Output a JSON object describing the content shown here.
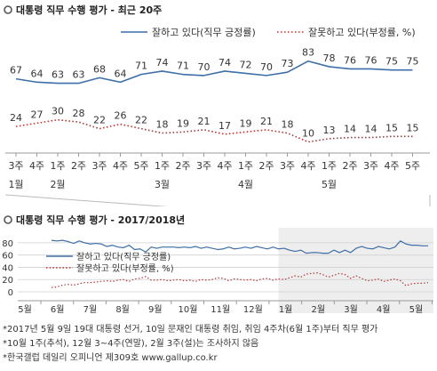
{
  "colors": {
    "approve": "#3f6fa8",
    "disapprove": "#b03a3a",
    "grid": "#d0d0d0",
    "axis": "#999999",
    "shade": "#eeeeee",
    "title_bullet": "#555555"
  },
  "icons": {
    "title_bullet": "circle-bullet-icon"
  },
  "chart_data": [
    {
      "type": "line",
      "title": "대통령 직무 수행 평가 - 최근 20주",
      "categories": [
        "3주",
        "4주",
        "1주",
        "2주",
        "3주",
        "4주",
        "5주",
        "1주",
        "2주",
        "3주",
        "4주",
        "1주",
        "2주",
        "3주",
        "4주",
        "1주",
        "2주",
        "3주",
        "4주",
        "5주"
      ],
      "month_labels": [
        {
          "index": 0,
          "label": "1월"
        },
        {
          "index": 2,
          "label": "2월"
        },
        {
          "index": 7,
          "label": "3월"
        },
        {
          "index": 11,
          "label": "4월"
        },
        {
          "index": 15,
          "label": "5월"
        }
      ],
      "series": [
        {
          "name": "잘하고 있다(직무 긍정률)",
          "style": "solid",
          "values": [
            67,
            64,
            63,
            63,
            68,
            64,
            71,
            74,
            71,
            70,
            74,
            72,
            70,
            73,
            83,
            78,
            76,
            76,
            75,
            75
          ]
        },
        {
          "name": "잘못하고 있다(부정률, %)",
          "style": "dotted",
          "values": [
            24,
            27,
            30,
            28,
            22,
            26,
            22,
            18,
            19,
            21,
            17,
            19,
            21,
            18,
            10,
            13,
            14,
            14,
            15,
            15
          ]
        }
      ],
      "ylim": [
        0,
        100
      ],
      "legend": "top"
    },
    {
      "type": "line",
      "title": "대통령 직무 수행 평가 - 2017/2018년",
      "yticks": [
        0,
        20,
        40,
        60,
        80
      ],
      "ylim": [
        0,
        90
      ],
      "month_labels": [
        "5월",
        "6월",
        "7월",
        "8월",
        "9월",
        "10월",
        "11월",
        "12월",
        "1월",
        "2월",
        "3월",
        "4월",
        "5월"
      ],
      "shaded_from_month_index": 8,
      "series": [
        {
          "name": "잘하고 있다(직무 긍정률)",
          "style": "solid",
          "values": [
            84,
            83,
            84,
            82,
            79,
            83,
            80,
            78,
            79,
            78,
            74,
            76,
            73,
            72,
            76,
            69,
            70,
            65,
            73,
            71,
            73,
            73,
            73,
            72,
            73,
            72,
            74,
            71,
            73,
            71,
            69,
            70,
            73,
            70,
            71,
            73,
            71,
            74,
            72,
            70,
            73,
            70,
            71,
            68,
            66,
            68,
            63,
            64,
            64,
            63,
            63,
            68,
            64,
            68,
            64,
            71,
            74,
            71,
            70,
            74,
            72,
            70,
            73,
            83,
            78,
            76,
            76,
            75,
            75
          ]
        },
        {
          "name": "잘못하고 있다(부정률, %)",
          "style": "dotted",
          "values": [
            7,
            8,
            11,
            12,
            11,
            13,
            15,
            15,
            16,
            17,
            18,
            17,
            19,
            20,
            17,
            21,
            22,
            25,
            19,
            19,
            20,
            18,
            19,
            20,
            18,
            19,
            17,
            20,
            19,
            20,
            23,
            22,
            18,
            21,
            20,
            19,
            20,
            18,
            21,
            22,
            19,
            21,
            20,
            23,
            26,
            24,
            29,
            30,
            31,
            28,
            24,
            27,
            30,
            28,
            22,
            26,
            22,
            18,
            19,
            21,
            17,
            19,
            21,
            18,
            10,
            13,
            14,
            14,
            15
          ]
        }
      ],
      "legend": "upper-left"
    }
  ],
  "notes": [
    "*2017년 5월 9일 19대 대통령 선거, 10일 문재인 대통령 취임, 취임 4주차(6월 1주)부터 직무 평가",
    "*10월 1주(추석), 12월 3~4주(연말), 2월 3주(설)는 조사하지 않음",
    "*한국갤럽 데일리 오피니언 제309호 www.gallup.co.kr"
  ]
}
